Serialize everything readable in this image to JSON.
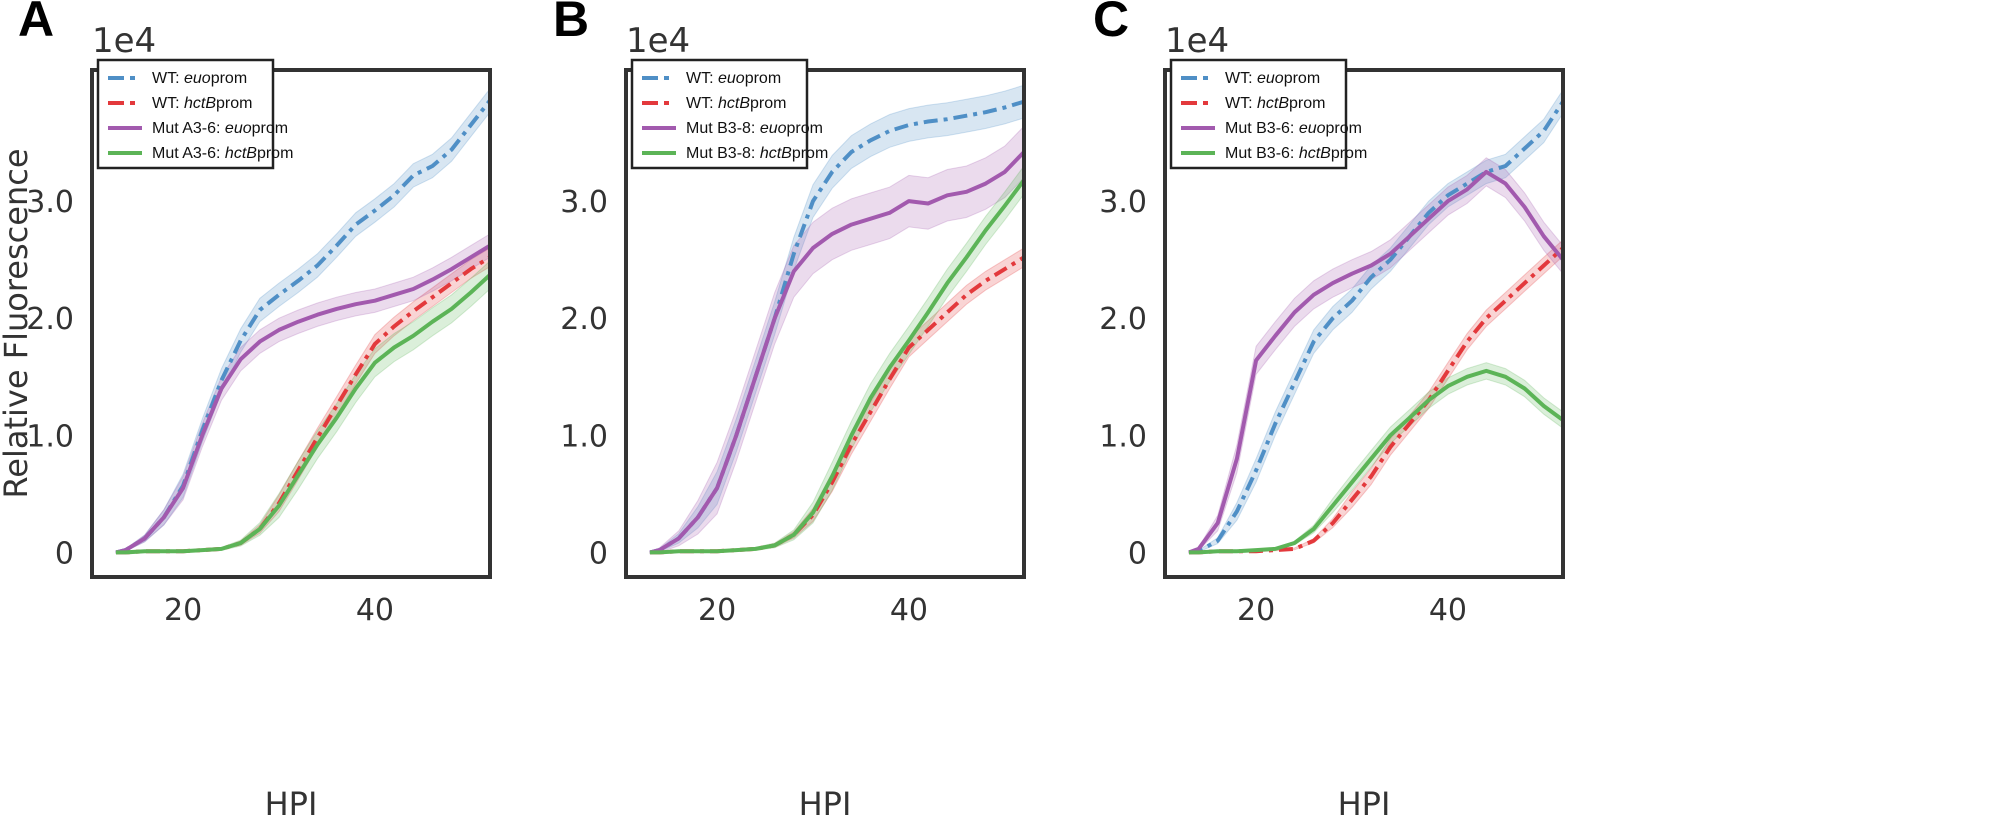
{
  "chart_data": [
    {
      "panel": "A",
      "type": "line",
      "offset_text": "1e4",
      "xlabel": "HPI",
      "ylabel": "Relative Fluorescence",
      "xticks": [
        20,
        40
      ],
      "yticks": [
        {
          "v": 0,
          "label": "0"
        },
        {
          "v": 1,
          "label": "1.0"
        },
        {
          "v": 2,
          "label": "2.0"
        },
        {
          "v": 3,
          "label": "3.0"
        }
      ],
      "xlim": [
        10.5,
        52
      ],
      "ylim": [
        -0.21,
        4.12
      ],
      "grid": false,
      "legend_position": "top-left",
      "x": [
        13,
        14,
        16,
        18,
        20,
        22,
        24,
        26,
        28,
        30,
        32,
        34,
        36,
        38,
        40,
        42,
        44,
        46,
        48,
        50,
        52
      ],
      "series": [
        {
          "name": "WT: euoprom",
          "legend": {
            "prefix": "WT: ",
            "italic": "euo",
            "suffix": "prom"
          },
          "color": "#4f8fc6",
          "style": "dashdot",
          "band": 0.1,
          "values": [
            0,
            0.02,
            0.12,
            0.3,
            0.57,
            1.04,
            1.47,
            1.81,
            2.07,
            2.2,
            2.32,
            2.45,
            2.62,
            2.8,
            2.92,
            3.05,
            3.22,
            3.3,
            3.44,
            3.65,
            3.86
          ]
        },
        {
          "name": "WT: hctBprom",
          "legend": {
            "prefix": "WT: ",
            "italic": "hctB",
            "suffix": "prom"
          },
          "color": "#e3393c",
          "style": "dashdot",
          "band": 0.08,
          "values": [
            0,
            0,
            0.01,
            0.01,
            0.01,
            0.02,
            0.03,
            0.08,
            0.2,
            0.42,
            0.7,
            0.98,
            1.25,
            1.52,
            1.78,
            1.93,
            2.06,
            2.18,
            2.3,
            2.42,
            2.52
          ]
        },
        {
          "name": "Mut A3-6: euoprom",
          "legend": {
            "prefix": "Mut A3-6: ",
            "italic": "euo",
            "suffix": "prom"
          },
          "color": "#a25aae",
          "style": "solid",
          "band": 0.1,
          "values": [
            0,
            0.02,
            0.12,
            0.3,
            0.55,
            1.0,
            1.4,
            1.65,
            1.8,
            1.9,
            1.97,
            2.03,
            2.08,
            2.12,
            2.15,
            2.2,
            2.25,
            2.33,
            2.42,
            2.52,
            2.62
          ]
        },
        {
          "name": "Mut A3-6: hctBprom",
          "legend": {
            "prefix": "Mut A3-6: ",
            "italic": "hctB",
            "suffix": "prom"
          },
          "color": "#5cb457",
          "style": "solid",
          "band": 0.12,
          "values": [
            0,
            0,
            0.01,
            0.01,
            0.01,
            0.02,
            0.03,
            0.08,
            0.2,
            0.4,
            0.66,
            0.92,
            1.15,
            1.4,
            1.62,
            1.75,
            1.85,
            1.97,
            2.08,
            2.22,
            2.37
          ]
        }
      ]
    },
    {
      "panel": "B",
      "type": "line",
      "offset_text": "1e4",
      "xlabel": "HPI",
      "ylabel": "",
      "xticks": [
        20,
        40
      ],
      "yticks": [
        {
          "v": 0,
          "label": "0"
        },
        {
          "v": 1,
          "label": "1.0"
        },
        {
          "v": 2,
          "label": "2.0"
        },
        {
          "v": 3,
          "label": "3.0"
        }
      ],
      "xlim": [
        10.5,
        52
      ],
      "ylim": [
        -0.21,
        4.12
      ],
      "grid": false,
      "legend_position": "top-left",
      "x": [
        13,
        14,
        16,
        18,
        20,
        22,
        24,
        26,
        28,
        30,
        32,
        34,
        36,
        38,
        40,
        42,
        44,
        46,
        48,
        50,
        52
      ],
      "series": [
        {
          "name": "WT: euoprom",
          "legend": {
            "prefix": "WT: ",
            "italic": "euo",
            "suffix": "prom"
          },
          "color": "#4f8fc6",
          "style": "dashdot",
          "band": 0.14,
          "values": [
            0,
            0.02,
            0.12,
            0.3,
            0.55,
            1.0,
            1.5,
            2.0,
            2.55,
            3.0,
            3.25,
            3.42,
            3.52,
            3.6,
            3.65,
            3.68,
            3.7,
            3.73,
            3.76,
            3.8,
            3.85
          ]
        },
        {
          "name": "WT: hctBprom",
          "legend": {
            "prefix": "WT: ",
            "italic": "hctB",
            "suffix": "prom"
          },
          "color": "#e3393c",
          "style": "dashdot",
          "band": 0.08,
          "values": [
            0,
            0,
            0.01,
            0.01,
            0.01,
            0.02,
            0.03,
            0.06,
            0.15,
            0.32,
            0.6,
            0.92,
            1.2,
            1.48,
            1.75,
            1.9,
            2.05,
            2.2,
            2.32,
            2.42,
            2.52
          ]
        },
        {
          "name": "Mut B3-8: euoprom",
          "legend": {
            "prefix": "Mut B3-8: ",
            "italic": "euo",
            "suffix": "prom"
          },
          "color": "#a25aae",
          "style": "solid",
          "band": 0.22,
          "values": [
            0,
            0.02,
            0.12,
            0.3,
            0.55,
            1.0,
            1.5,
            2.0,
            2.4,
            2.6,
            2.72,
            2.8,
            2.85,
            2.9,
            3.0,
            2.98,
            3.05,
            3.08,
            3.15,
            3.25,
            3.42
          ]
        },
        {
          "name": "Mut B3-8: hctBprom",
          "legend": {
            "prefix": "Mut B3-8: ",
            "italic": "hctB",
            "suffix": "prom"
          },
          "color": "#5cb457",
          "style": "solid",
          "band": 0.12,
          "values": [
            0,
            0,
            0.01,
            0.01,
            0.01,
            0.02,
            0.03,
            0.06,
            0.15,
            0.34,
            0.65,
            1.0,
            1.32,
            1.58,
            1.81,
            2.05,
            2.3,
            2.52,
            2.75,
            2.96,
            3.18
          ]
        }
      ]
    },
    {
      "panel": "C",
      "type": "line",
      "offset_text": "1e4",
      "xlabel": "HPI",
      "ylabel": "",
      "xticks": [
        20,
        40
      ],
      "yticks": [
        {
          "v": 0,
          "label": "0"
        },
        {
          "v": 1,
          "label": "1.0"
        },
        {
          "v": 2,
          "label": "2.0"
        },
        {
          "v": 3,
          "label": "3.0"
        }
      ],
      "xlim": [
        10.5,
        52
      ],
      "ylim": [
        -0.21,
        4.12
      ],
      "grid": false,
      "legend_position": "top-left",
      "x": [
        13,
        14,
        16,
        18,
        20,
        22,
        24,
        26,
        28,
        30,
        32,
        34,
        36,
        38,
        40,
        42,
        44,
        46,
        48,
        50,
        52
      ],
      "series": [
        {
          "name": "WT: euoprom",
          "legend": {
            "prefix": "WT: ",
            "italic": "euo",
            "suffix": "prom"
          },
          "color": "#4f8fc6",
          "style": "dashdot",
          "band": 0.1,
          "values": [
            0,
            0.01,
            0.1,
            0.35,
            0.7,
            1.1,
            1.45,
            1.8,
            2.0,
            2.15,
            2.35,
            2.5,
            2.7,
            2.9,
            3.05,
            3.15,
            3.25,
            3.3,
            3.45,
            3.6,
            3.85
          ]
        },
        {
          "name": "WT: hctBprom",
          "legend": {
            "prefix": "WT: ",
            "italic": "hctB",
            "suffix": "prom"
          },
          "color": "#e3393c",
          "style": "dashdot",
          "band": 0.07,
          "values": [
            0,
            0,
            0.01,
            0.01,
            0.01,
            0.02,
            0.03,
            0.1,
            0.25,
            0.45,
            0.65,
            0.9,
            1.1,
            1.3,
            1.55,
            1.8,
            2.0,
            2.15,
            2.3,
            2.45,
            2.6
          ]
        },
        {
          "name": "Mut B3-6: euoprom",
          "legend": {
            "prefix": "Mut B3-6: ",
            "italic": "euo",
            "suffix": "prom"
          },
          "color": "#a25aae",
          "style": "solid",
          "band": 0.12,
          "values": [
            0,
            0.03,
            0.25,
            0.8,
            1.64,
            1.85,
            2.05,
            2.2,
            2.3,
            2.38,
            2.45,
            2.55,
            2.7,
            2.85,
            3.0,
            3.1,
            3.25,
            3.15,
            2.95,
            2.7,
            2.5
          ]
        },
        {
          "name": "Mut B3-6: hctBprom",
          "legend": {
            "prefix": "Mut B3-6: ",
            "italic": "hctB",
            "suffix": "prom"
          },
          "color": "#5cb457",
          "style": "solid",
          "band": 0.07,
          "values": [
            0,
            0,
            0.01,
            0.01,
            0.02,
            0.03,
            0.08,
            0.2,
            0.4,
            0.6,
            0.8,
            1.0,
            1.15,
            1.3,
            1.42,
            1.5,
            1.55,
            1.5,
            1.4,
            1.25,
            1.13
          ]
        }
      ]
    }
  ]
}
